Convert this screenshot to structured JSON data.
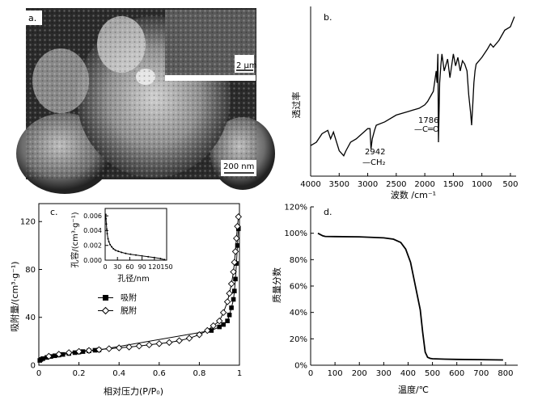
{
  "panels": {
    "a": {
      "label": "a.",
      "scale_main": "200 nm",
      "scale_inset": "2 μm"
    },
    "b": {
      "label": "b.",
      "ylabel": "透过率",
      "xlabel": "波数 /cm⁻¹",
      "annotations": [
        {
          "value": "1786",
          "group": "—C═O"
        },
        {
          "value": "2942",
          "group": "—CH₂"
        }
      ]
    },
    "c": {
      "label": "c.",
      "ylabel": "吸附量/(cm³·g⁻¹)",
      "xlabel": "相对压力(P/P₀)",
      "legend": [
        "吸附",
        "脱附"
      ],
      "inset": {
        "ylabel": "孔容/(cm³·g⁻¹)",
        "xlabel": "孔径/nm"
      }
    },
    "d": {
      "label": "d.",
      "ylabel": "质量分数",
      "xlabel": "温度/℃"
    }
  },
  "chart_data": [
    {
      "id": "b",
      "type": "line",
      "xlabel": "波数 /cm⁻¹",
      "ylabel": "透过率",
      "xlim": [
        4000,
        400
      ],
      "ylim": [
        0,
        100
      ],
      "x_ticks": [
        4000,
        3500,
        3000,
        2500,
        2000,
        1500,
        1000,
        500
      ],
      "y_ticks": [],
      "x": [
        4000,
        3900,
        3800,
        3700,
        3650,
        3600,
        3500,
        3420,
        3380,
        3300,
        3200,
        3100,
        3000,
        2960,
        2942,
        2920,
        2880,
        2850,
        2700,
        2500,
        2300,
        2100,
        2000,
        1950,
        1850,
        1800,
        1786,
        1770,
        1760,
        1740,
        1720,
        1700,
        1660,
        1600,
        1560,
        1500,
        1460,
        1420,
        1380,
        1340,
        1300,
        1260,
        1230,
        1200,
        1180,
        1160,
        1140,
        1120,
        1100,
        1000,
        900,
        850,
        800,
        700,
        600,
        500,
        430
      ],
      "y": [
        18,
        20,
        25,
        27,
        22,
        26,
        15,
        12,
        15,
        20,
        22,
        25,
        28,
        28,
        16,
        22,
        27,
        30,
        32,
        36,
        38,
        40,
        42,
        44,
        50,
        62,
        55,
        72,
        20,
        55,
        65,
        72,
        62,
        69,
        58,
        72,
        65,
        70,
        62,
        68,
        66,
        62,
        48,
        38,
        30,
        42,
        55,
        62,
        66,
        70,
        75,
        78,
        76,
        80,
        86,
        88,
        94
      ],
      "annotations": [
        {
          "x": 1786,
          "text": "1786 —C═O"
        },
        {
          "x": 2942,
          "text": "2942 —CH₂"
        }
      ]
    },
    {
      "id": "c",
      "type": "scatter",
      "xlabel": "相对压力(P/P₀)",
      "ylabel": "吸附量/(cm³·g⁻¹)",
      "xlim": [
        0,
        1.0
      ],
      "ylim": [
        0,
        135
      ],
      "x_ticks": [
        0,
        0.2,
        0.4,
        0.6,
        0.8,
        1.0
      ],
      "y_ticks": [
        0,
        40,
        80,
        120
      ],
      "series": [
        {
          "name": "吸附",
          "x": [
            0.005,
            0.01,
            0.02,
            0.04,
            0.06,
            0.08,
            0.1,
            0.12,
            0.15,
            0.18,
            0.2,
            0.22,
            0.25,
            0.28,
            0.3,
            0.86,
            0.9,
            0.92,
            0.94,
            0.95,
            0.96,
            0.97,
            0.975,
            0.98,
            0.985,
            0.99,
            0.995
          ],
          "y": [
            4.0,
            4.8,
            5.5,
            6.5,
            7.3,
            7.9,
            8.5,
            9.0,
            9.8,
            10.5,
            11.0,
            11.4,
            12.0,
            12.5,
            12.8,
            29,
            32,
            34,
            37,
            42,
            48,
            55,
            62,
            72,
            85,
            100,
            114
          ]
        },
        {
          "name": "脱附",
          "x": [
            0.995,
            0.99,
            0.985,
            0.98,
            0.975,
            0.97,
            0.96,
            0.95,
            0.94,
            0.92,
            0.9,
            0.87,
            0.84,
            0.8,
            0.75,
            0.7,
            0.65,
            0.6,
            0.55,
            0.5,
            0.45,
            0.4,
            0.35,
            0.3,
            0.25,
            0.2,
            0.15,
            0.1,
            0.05
          ],
          "y": [
            124,
            116,
            106,
            95,
            86,
            78,
            68,
            60,
            53,
            44,
            37,
            33,
            29,
            25.5,
            22.5,
            20.5,
            19.0,
            18.0,
            17.0,
            16.0,
            15.2,
            14.5,
            13.8,
            13.0,
            12.3,
            11.5,
            10.5,
            9.2,
            7.5
          ]
        }
      ]
    },
    {
      "id": "c-inset",
      "type": "line",
      "xlabel": "孔径/nm",
      "ylabel": "孔容/(cm³·g⁻¹)",
      "xlim": [
        0,
        150
      ],
      "ylim": [
        0,
        0.007
      ],
      "x_ticks": [
        0,
        30,
        60,
        90,
        120,
        150
      ],
      "y_ticks": [
        0.0,
        0.002,
        0.004,
        0.006
      ],
      "x": [
        1.5,
        2,
        3,
        4,
        5,
        7,
        9,
        12,
        16,
        20,
        25,
        32,
        40,
        50,
        62,
        75,
        90,
        105,
        120,
        135,
        145
      ],
      "y": [
        0.0062,
        0.0056,
        0.0049,
        0.0042,
        0.0036,
        0.0029,
        0.0025,
        0.0021,
        0.0018,
        0.00155,
        0.00135,
        0.0012,
        0.00105,
        0.00092,
        0.0008,
        0.0007,
        0.00058,
        0.00046,
        0.00036,
        0.00022,
        8e-05
      ]
    },
    {
      "id": "d",
      "type": "line",
      "xlabel": "温度/℃",
      "ylabel": "质量分数",
      "xlim": [
        0,
        850
      ],
      "ylim": [
        0,
        120
      ],
      "x_ticks": [
        0,
        100,
        200,
        300,
        400,
        500,
        600,
        700,
        800
      ],
      "y_ticks": [
        0,
        20,
        40,
        60,
        80,
        100,
        120
      ],
      "y_tick_suffix": "%",
      "x": [
        30,
        40,
        50,
        60,
        100,
        200,
        300,
        340,
        370,
        390,
        410,
        430,
        450,
        460,
        470,
        480,
        490,
        500,
        550,
        600,
        700,
        790
      ],
      "y": [
        100,
        99,
        98,
        97.6,
        97.5,
        97.3,
        96.5,
        95.5,
        93,
        88,
        78,
        60,
        42,
        25,
        10,
        6,
        5.2,
        4.9,
        4.6,
        4.4,
        4.2,
        4.0
      ]
    }
  ]
}
